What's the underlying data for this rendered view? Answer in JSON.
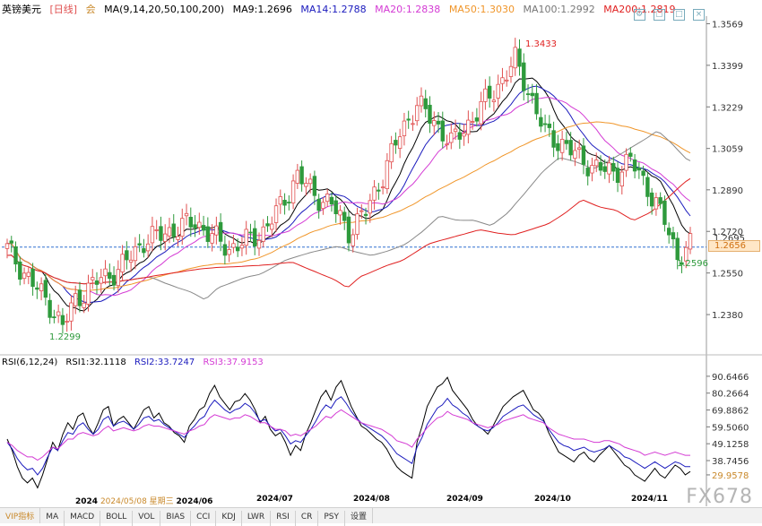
{
  "header": {
    "symbol": "英镑美元",
    "period": "[日线]",
    "lock": "会",
    "ma_params": "MA(9,14,20,50,100,200)",
    "ma9": "MA9:1.2696",
    "ma14": "MA14:1.2788",
    "ma20": "MA20:1.2838",
    "ma50": "MA50:1.3030",
    "ma100": "MA100:1.2992",
    "ma200": "MA200:1.2819"
  },
  "rsi_header": {
    "params": "RSI(6,12,24)",
    "rsi1": "RSI1:32.1118",
    "rsi2": "RSI2:33.7247",
    "rsi3": "RSI3:37.9153"
  },
  "colors": {
    "up": "#e05050",
    "down": "#2e9a3c",
    "ma9": "#000000",
    "ma14": "#1b1bbd",
    "ma20": "#d43bd4",
    "ma50": "#f0962a",
    "ma100": "#888888",
    "ma200": "#e02020",
    "rsi1": "#000000",
    "rsi2": "#1b1bbd",
    "rsi3": "#d43bd4"
  },
  "price_axis": [
    "1.3569",
    "1.3399",
    "1.3229",
    "1.3059",
    "1.2890",
    "1.2720",
    "1.2550",
    "1.2380"
  ],
  "current_price": "1.2656",
  "current_price_upper": "1.2695",
  "rsi_axis": [
    "90.6466",
    "80.2664",
    "69.8862",
    "59.5060",
    "49.1258",
    "38.7456",
    "29.9578"
  ],
  "time_axis": {
    "t0": "2024",
    "cursor_date": "2024/05/08 星期三",
    "t1": "2024/06",
    "t2": "2024/07",
    "t3": "2024/08",
    "t4": "2024/09",
    "t5": "2024/10",
    "t6": "2024/11"
  },
  "annotations": {
    "high": "1.3433",
    "low1": "1.2299",
    "low2": "1.2596"
  },
  "bottom_tabs": [
    "VIP指标",
    "MA",
    "MACD",
    "BOLL",
    "VOL",
    "BIAS",
    "CCI",
    "KDJ",
    "LWR",
    "RSI",
    "CR",
    "PSY",
    "设置"
  ],
  "watermark": "FX678",
  "chart_data": {
    "type": "candlestick",
    "title": "英镑美元 [日线]",
    "ylim": [
      1.223,
      1.36
    ],
    "candles": [],
    "rsi_ylim": [
      20,
      95
    ],
    "rsi1": [
      52,
      45,
      35,
      28,
      25,
      28,
      22,
      30,
      40,
      50,
      45,
      55,
      62,
      58,
      66,
      68,
      60,
      55,
      62,
      70,
      72,
      60,
      64,
      66,
      62,
      58,
      64,
      70,
      72,
      65,
      68,
      62,
      60,
      56,
      54,
      50,
      60,
      64,
      70,
      72,
      80,
      85,
      78,
      74,
      70,
      75,
      76,
      80,
      76,
      70,
      62,
      66,
      58,
      54,
      56,
      50,
      42,
      48,
      45,
      55,
      62,
      70,
      78,
      82,
      76,
      84,
      88,
      80,
      72,
      66,
      60,
      58,
      55,
      52,
      50,
      46,
      40,
      35,
      32,
      30,
      28,
      50,
      60,
      72,
      78,
      84,
      86,
      90,
      82,
      78,
      74,
      70,
      64,
      60,
      58,
      55,
      60,
      66,
      72,
      75,
      78,
      80,
      82,
      76,
      70,
      68,
      64,
      56,
      50,
      44,
      42,
      40,
      38,
      42,
      44,
      40,
      38,
      42,
      45,
      48,
      44,
      40,
      36,
      34,
      30,
      28,
      26,
      30,
      34,
      30,
      28,
      32,
      36,
      34,
      30,
      32
    ],
    "rsi2": [
      50,
      46,
      40,
      36,
      33,
      34,
      30,
      34,
      41,
      47,
      45,
      51,
      56,
      55,
      60,
      62,
      58,
      55,
      58,
      64,
      66,
      60,
      62,
      63,
      61,
      58,
      61,
      65,
      66,
      63,
      64,
      61,
      59,
      57,
      55,
      53,
      57,
      60,
      64,
      66,
      72,
      76,
      73,
      70,
      68,
      70,
      71,
      74,
      72,
      68,
      63,
      64,
      60,
      57,
      58,
      54,
      49,
      51,
      50,
      54,
      58,
      63,
      69,
      73,
      71,
      76,
      78,
      74,
      69,
      65,
      62,
      60,
      58,
      56,
      54,
      51,
      47,
      43,
      41,
      39,
      37,
      47,
      53,
      61,
      66,
      71,
      73,
      77,
      73,
      71,
      68,
      66,
      62,
      60,
      58,
      57,
      59,
      62,
      66,
      68,
      70,
      72,
      73,
      70,
      67,
      65,
      63,
      58,
      54,
      50,
      48,
      47,
      45,
      46,
      47,
      45,
      44,
      45,
      46,
      48,
      46,
      44,
      41,
      40,
      38,
      36,
      34,
      36,
      38,
      36,
      34,
      36,
      38,
      37,
      35,
      35
    ],
    "rsi3": [
      50,
      48,
      45,
      43,
      41,
      41,
      39,
      41,
      44,
      47,
      46,
      49,
      52,
      52,
      55,
      56,
      55,
      54,
      55,
      58,
      60,
      57,
      58,
      59,
      58,
      57,
      58,
      60,
      61,
      60,
      60,
      59,
      58,
      57,
      56,
      55,
      57,
      58,
      60,
      61,
      65,
      67,
      66,
      65,
      64,
      65,
      65,
      67,
      66,
      64,
      62,
      62,
      60,
      58,
      58,
      57,
      54,
      55,
      54,
      56,
      58,
      60,
      63,
      66,
      65,
      68,
      70,
      68,
      66,
      64,
      62,
      61,
      60,
      59,
      58,
      56,
      54,
      51,
      50,
      49,
      47,
      52,
      55,
      59,
      62,
      65,
      66,
      69,
      67,
      66,
      65,
      64,
      62,
      61,
      60,
      59,
      60,
      61,
      63,
      64,
      65,
      66,
      67,
      65,
      64,
      63,
      62,
      59,
      57,
      55,
      54,
      53,
      52,
      52,
      52,
      51,
      50,
      50,
      51,
      51,
      50,
      49,
      47,
      46,
      45,
      44,
      42,
      43,
      44,
      43,
      42,
      43,
      44,
      43,
      42,
      42
    ]
  }
}
